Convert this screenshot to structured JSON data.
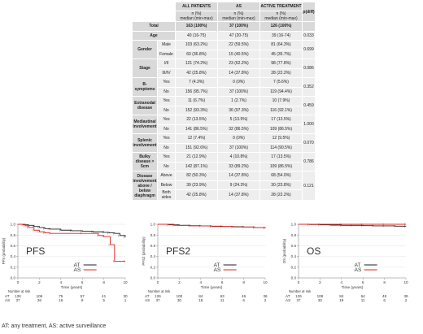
{
  "table": {
    "headers": [
      "ALL PATIENTS",
      "AS",
      "ACTIVE TREATMENT",
      "p(diff)"
    ],
    "subheaders": [
      "n (%)\nmedian (min-max)",
      "n (%)\nmedian (min-max)",
      "n (%)\nmedian (min-max)"
    ],
    "rows": [
      {
        "cat": "Total",
        "sub": "",
        "all": "163 (100%)",
        "as": "37 (100%)",
        "at": "126 (100%)",
        "p": "",
        "total": true
      },
      {
        "cat": "Age",
        "sub": "",
        "all": "40 (16-75)",
        "as": "47 (20-75)",
        "at": "39 (16-74)",
        "p": "0.033"
      },
      {
        "cat": "Gender",
        "sub": "Male",
        "all": "103 (63.2%)",
        "as": "22 (59.5%)",
        "at": "81 (64.3%)",
        "p": "0.699"
      },
      {
        "cat": "",
        "sub": "Female",
        "all": "60 (36.8%)",
        "as": "15 (40.5%)",
        "at": "45 (35.7%)",
        "p": ""
      },
      {
        "cat": "Stage",
        "sub": "I/II",
        "all": "121 (74.2%)",
        "as": "23 (62.2%)",
        "at": "98 (77.8%)",
        "p": "0.086"
      },
      {
        "cat": "",
        "sub": "III/IV",
        "all": "42 (25.8%)",
        "as": "14 (37.8%)",
        "at": "28 (22.2%)",
        "p": ""
      },
      {
        "cat": "B-symptoms",
        "sub": "Yes",
        "all": "7 (4.3%)",
        "as": "0 (0%)",
        "at": "7 (5.6%)",
        "p": "0.352"
      },
      {
        "cat": "",
        "sub": "No",
        "all": "156 (95.7%)",
        "as": "37 (100%)",
        "at": "119 (94.4%)",
        "p": ""
      },
      {
        "cat": "Extranodal disease",
        "sub": "Yes",
        "all": "11 (6.7%)",
        "as": "1 (2.7%)",
        "at": "10 (7.9%)",
        "p": "0.459"
      },
      {
        "cat": "",
        "sub": "No",
        "all": "152 (93.3%)",
        "as": "36 (97.3%)",
        "at": "116 (92.1%)",
        "p": ""
      },
      {
        "cat": "Mediastinal involvement",
        "sub": "Yes",
        "all": "22 (13.5%)",
        "as": "5 (13.5%)",
        "at": "17 (13.5%)",
        "p": "1.000"
      },
      {
        "cat": "",
        "sub": "No",
        "all": "141 (86.5%)",
        "as": "32 (86.5%)",
        "at": "109 (86.5%)",
        "p": ""
      },
      {
        "cat": "Splenic involvement",
        "sub": "Yes",
        "all": "12 (7.4%)",
        "as": "0 (0%)",
        "at": "12 (9.5%)",
        "p": "0.070"
      },
      {
        "cat": "",
        "sub": "No",
        "all": "151 (92.6%)",
        "as": "37 (100%)",
        "at": "114 (90.5%)",
        "p": ""
      },
      {
        "cat": "Bulky disease > 5cm",
        "sub": "Yes",
        "all": "21 (12.9%)",
        "as": "4 (10.8%)",
        "at": "17 (13.5%)",
        "p": "0.786"
      },
      {
        "cat": "",
        "sub": "No",
        "all": "142 (87.1%)",
        "as": "33 (89.2%)",
        "at": "109 (86.5%)",
        "p": ""
      },
      {
        "cat": "Disease involvement above / below diaphragm",
        "sub": "Above",
        "all": "82 (50.3%)",
        "as": "14 (37.8%)",
        "at": "68 (54.0%)",
        "p": "0.121"
      },
      {
        "cat": "",
        "sub": "Below",
        "all": "39 (23.9%)",
        "as": "9 (24.3%)",
        "at": "30 (23.8%)",
        "p": ""
      },
      {
        "cat": "",
        "sub": "Both sides",
        "all": "42 (25.8%)",
        "as": "14 (37.8%)",
        "at": "28 (22.2%)",
        "p": ""
      }
    ]
  },
  "colors": {
    "at": "#222222",
    "as": "#e0241b",
    "axis": "#888888",
    "grid": "#dddddd"
  },
  "chart_data": [
    {
      "type": "line",
      "panel_label": "PFS",
      "xlabel": "Time (years)",
      "ylabel": "PFS (probability)",
      "xlim": [
        0,
        10
      ],
      "ylim": [
        0,
        1.0
      ],
      "xticks": [
        0,
        2,
        4,
        6,
        8,
        10
      ],
      "yticks": [
        0,
        0.2,
        0.4,
        0.6,
        0.8,
        1.0
      ],
      "series": [
        {
          "name": "AT",
          "step": true,
          "x": [
            0,
            0.5,
            1,
            1.5,
            2,
            2.5,
            3,
            4,
            5,
            6,
            7,
            8,
            8.5,
            9,
            9.5,
            10
          ],
          "y": [
            1.0,
            0.99,
            0.98,
            0.96,
            0.94,
            0.92,
            0.91,
            0.89,
            0.88,
            0.87,
            0.86,
            0.85,
            0.84,
            0.83,
            0.79,
            0.76
          ]
        },
        {
          "name": "AS",
          "step": true,
          "x": [
            0,
            0.7,
            1,
            1.5,
            2,
            2.5,
            3,
            6,
            7.5,
            8,
            8.6,
            9,
            10
          ],
          "y": [
            1.0,
            0.97,
            0.94,
            0.89,
            0.86,
            0.84,
            0.83,
            0.83,
            0.79,
            0.77,
            0.62,
            0.31,
            0.31
          ]
        }
      ],
      "risk_header": "Number at risk",
      "risk": [
        {
          "label": "AT",
          "x": [
            0,
            2,
            4,
            6,
            8,
            10
          ],
          "values": [
            "126",
            "106",
            "75",
            "57",
            "41",
            "30"
          ]
        },
        {
          "label": "AS",
          "x": [
            0,
            2,
            4,
            6,
            8,
            10
          ],
          "values": [
            "37",
            "26",
            "16",
            "9",
            "5",
            "1"
          ]
        }
      ]
    },
    {
      "type": "line",
      "panel_label": "PFS2",
      "xlabel": "Time (years)",
      "ylabel": "PFS2 (probability)",
      "xlim": [
        0,
        10
      ],
      "ylim": [
        0,
        1.0
      ],
      "xticks": [
        0,
        2,
        4,
        6,
        8,
        10
      ],
      "yticks": [
        0,
        0.2,
        0.4,
        0.6,
        0.8,
        1.0
      ],
      "series": [
        {
          "name": "AT",
          "step": true,
          "x": [
            0,
            1,
            2,
            3,
            4,
            5,
            6,
            7,
            8,
            9,
            10
          ],
          "y": [
            1.0,
            0.99,
            0.98,
            0.975,
            0.97,
            0.965,
            0.96,
            0.955,
            0.95,
            0.94,
            0.93
          ]
        },
        {
          "name": "AS",
          "step": true,
          "x": [
            0,
            1.5,
            3,
            5,
            6,
            7,
            8,
            9,
            10
          ],
          "y": [
            1.0,
            0.98,
            0.97,
            0.96,
            0.96,
            0.95,
            0.95,
            0.94,
            0.94
          ]
        }
      ],
      "risk_header": "Number at risk",
      "risk": [
        {
          "label": "AT",
          "x": [
            0,
            2,
            4,
            6,
            8,
            10
          ],
          "values": [
            "126",
            "100",
            "84",
            "63",
            "46",
            "36"
          ]
        },
        {
          "label": "AS",
          "x": [
            0,
            2,
            4,
            6,
            8,
            10
          ],
          "values": [
            "37",
            "30",
            "18",
            "11",
            "6",
            "2"
          ]
        }
      ]
    },
    {
      "type": "line",
      "panel_label": "OS",
      "xlabel": "Time (years)",
      "ylabel": "OS (probability)",
      "xlim": [
        0,
        10
      ],
      "ylim": [
        0,
        1.0
      ],
      "xticks": [
        0,
        2,
        4,
        6,
        8,
        10
      ],
      "yticks": [
        0,
        0.2,
        0.4,
        0.6,
        0.8,
        1.0
      ],
      "series": [
        {
          "name": "AT",
          "step": true,
          "x": [
            0,
            1,
            2,
            3,
            4,
            5,
            6,
            7,
            8,
            9,
            10
          ],
          "y": [
            1.0,
            0.995,
            0.99,
            0.985,
            0.98,
            0.98,
            0.975,
            0.97,
            0.97,
            0.965,
            0.96
          ]
        },
        {
          "name": "AS",
          "step": true,
          "x": [
            0,
            2,
            4,
            6,
            8,
            10
          ],
          "y": [
            1.0,
            1.0,
            1.0,
            1.0,
            1.0,
            1.0
          ]
        }
      ],
      "risk_header": "Number at risk",
      "risk": [
        {
          "label": "AT",
          "x": [
            0,
            2,
            4,
            6,
            8,
            10
          ],
          "values": [
            "126",
            "108",
            "84",
            "64",
            "48",
            "39"
          ]
        },
        {
          "label": "AS",
          "x": [
            0,
            2,
            4,
            6,
            8,
            10
          ],
          "values": [
            "37",
            "30",
            "19",
            "11",
            "6",
            "2"
          ]
        }
      ]
    }
  ],
  "caption": "AT: any treatment, AS: active surveillance"
}
